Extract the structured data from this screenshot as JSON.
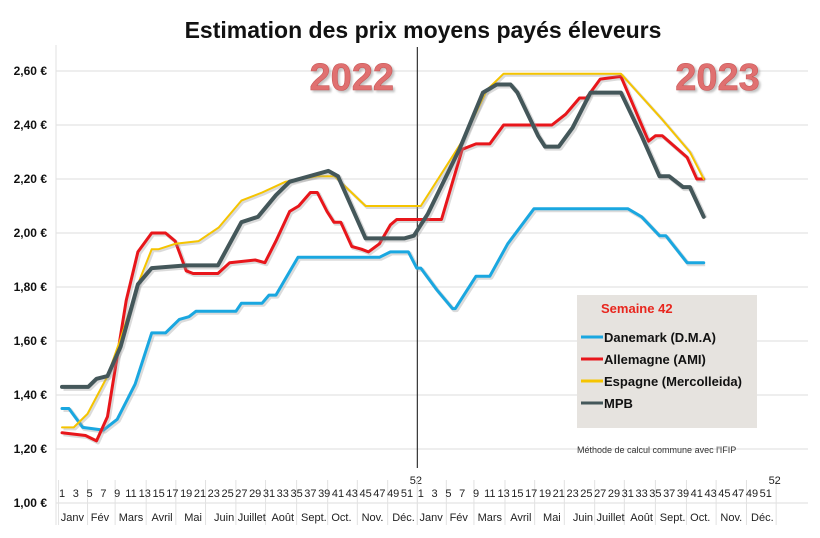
{
  "chart_data": {
    "type": "line",
    "title": "Estimation des prix moyens payés éleveurs",
    "xlabel": "",
    "ylabel": "",
    "ylim": [
      1.0,
      2.6
    ],
    "yticks": [
      "1,00 €",
      "1,20 €",
      "1,40 €",
      "1,60 €",
      "1,80 €",
      "2,00 €",
      "2,20 €",
      "2,40 €",
      "2,60 €"
    ],
    "ytick_values": [
      1.0,
      1.2,
      1.4,
      1.6,
      1.8,
      2.0,
      2.2,
      2.4,
      2.6
    ],
    "grid": true,
    "x_unit": "week index (1-52 = 2022, 53-104 = 2023)",
    "xlim": [
      1,
      104
    ],
    "year_labels": [
      {
        "text": "2022",
        "week_index": 43
      },
      {
        "text": "2023",
        "week_index": 96
      }
    ],
    "year_divider_week_index": 52.5,
    "week_ticks": [
      "1",
      "3",
      "5",
      "7",
      "9",
      "11",
      "13",
      "15",
      "17",
      "19",
      "21",
      "23",
      "25",
      "27",
      "29",
      "31",
      "33",
      "35",
      "37",
      "39",
      "41",
      "43",
      "45",
      "47",
      "49",
      "51",
      "52"
    ],
    "week_tick_values": [
      1,
      3,
      5,
      7,
      9,
      11,
      13,
      15,
      17,
      19,
      21,
      23,
      25,
      27,
      29,
      31,
      33,
      35,
      37,
      39,
      41,
      43,
      45,
      47,
      49,
      51,
      52
    ],
    "months": [
      "Janv",
      "Fév",
      "Mars",
      "Avril",
      "Mai",
      "Juin",
      "Juillet",
      "Août",
      "Sept.",
      "Oct.",
      "Nov.",
      "Déc."
    ],
    "month_centers": [
      2.5,
      6.5,
      11,
      15.5,
      20,
      24.5,
      28.5,
      33,
      37.5,
      41.5,
      46,
      50.5
    ],
    "legend": {
      "title": "Semaine 42",
      "placement": "lower-right"
    },
    "note": "Méthode de calcul commune avec l'IFIP",
    "series": [
      {
        "name": "Danemark (D.M.A)",
        "color": "#1aa7e0",
        "width": 3,
        "points": [
          [
            1,
            1.35
          ],
          [
            2,
            1.35
          ],
          [
            4,
            1.28
          ],
          [
            7,
            1.27
          ],
          [
            9,
            1.31
          ],
          [
            11.6,
            1.44
          ],
          [
            14,
            1.63
          ],
          [
            16,
            1.63
          ],
          [
            18,
            1.68
          ],
          [
            19.4,
            1.69
          ],
          [
            20.4,
            1.71
          ],
          [
            26.2,
            1.71
          ],
          [
            27,
            1.74
          ],
          [
            30,
            1.74
          ],
          [
            31,
            1.77
          ],
          [
            32,
            1.77
          ],
          [
            35.2,
            1.91
          ],
          [
            47,
            1.91
          ],
          [
            48.6,
            1.93
          ],
          [
            51.2,
            1.93
          ],
          [
            52.4,
            1.87
          ],
          [
            53,
            1.87
          ],
          [
            55.3,
            1.79
          ],
          [
            57.6,
            1.72
          ],
          [
            58,
            1.72
          ],
          [
            61,
            1.84
          ],
          [
            63,
            1.84
          ],
          [
            65.6,
            1.96
          ],
          [
            69.4,
            2.09
          ],
          [
            83,
            2.09
          ],
          [
            85,
            2.06
          ],
          [
            87.6,
            1.99
          ],
          [
            88.5,
            1.99
          ],
          [
            91.6,
            1.89
          ],
          [
            94,
            1.89
          ]
        ]
      },
      {
        "name": "Allemagne (AMI)",
        "color": "#e8161b",
        "width": 3,
        "points": [
          [
            1,
            1.26
          ],
          [
            4.4,
            1.25
          ],
          [
            6,
            1.23
          ],
          [
            7.6,
            1.32
          ],
          [
            10.3,
            1.75
          ],
          [
            12,
            1.93
          ],
          [
            14,
            2.0
          ],
          [
            16,
            2.0
          ],
          [
            17.4,
            1.97
          ],
          [
            19,
            1.86
          ],
          [
            20,
            1.85
          ],
          [
            23.6,
            1.85
          ],
          [
            25.3,
            1.89
          ],
          [
            29,
            1.9
          ],
          [
            30.4,
            1.89
          ],
          [
            32,
            1.97
          ],
          [
            34,
            2.08
          ],
          [
            35.3,
            2.1
          ],
          [
            37,
            2.15
          ],
          [
            38,
            2.15
          ],
          [
            39.4,
            2.08
          ],
          [
            40.4,
            2.04
          ],
          [
            41.4,
            2.04
          ],
          [
            43,
            1.95
          ],
          [
            44.4,
            1.94
          ],
          [
            45.4,
            1.93
          ],
          [
            47,
            1.96
          ],
          [
            48.6,
            2.03
          ],
          [
            49.5,
            2.05
          ],
          [
            56,
            2.05
          ],
          [
            59,
            2.31
          ],
          [
            61,
            2.33
          ],
          [
            63,
            2.33
          ],
          [
            65,
            2.4
          ],
          [
            72,
            2.4
          ],
          [
            74,
            2.44
          ],
          [
            76,
            2.5
          ],
          [
            77,
            2.5
          ],
          [
            79,
            2.57
          ],
          [
            82,
            2.58
          ],
          [
            86,
            2.34
          ],
          [
            87,
            2.36
          ],
          [
            88,
            2.36
          ],
          [
            91.6,
            2.28
          ],
          [
            93,
            2.2
          ],
          [
            94,
            2.2
          ]
        ]
      },
      {
        "name": "Espagne (Mercolleida)",
        "color": "#f5c400",
        "width": 2,
        "points": [
          [
            1,
            1.28
          ],
          [
            2.7,
            1.28
          ],
          [
            4.7,
            1.33
          ],
          [
            7.6,
            1.47
          ],
          [
            9.5,
            1.61
          ],
          [
            12.3,
            1.83
          ],
          [
            14,
            1.94
          ],
          [
            15,
            1.94
          ],
          [
            17.4,
            1.96
          ],
          [
            20.8,
            1.97
          ],
          [
            23.7,
            2.02
          ],
          [
            27,
            2.12
          ],
          [
            30,
            2.15
          ],
          [
            33.4,
            2.19
          ],
          [
            38,
            2.21
          ],
          [
            40.5,
            2.21
          ],
          [
            45,
            2.1
          ],
          [
            48,
            2.1
          ],
          [
            53,
            2.1
          ],
          [
            59,
            2.34
          ],
          [
            62.6,
            2.53
          ],
          [
            65,
            2.59
          ],
          [
            82,
            2.59
          ],
          [
            88,
            2.42
          ],
          [
            92,
            2.3
          ],
          [
            94,
            2.2
          ]
        ]
      },
      {
        "name": "MPB",
        "color": "#44575a",
        "width": 4,
        "points": [
          [
            1,
            1.43
          ],
          [
            4.8,
            1.43
          ],
          [
            6,
            1.46
          ],
          [
            7.6,
            1.47
          ],
          [
            9.5,
            1.58
          ],
          [
            12,
            1.81
          ],
          [
            14,
            1.87
          ],
          [
            19,
            1.88
          ],
          [
            23.6,
            1.88
          ],
          [
            27,
            2.04
          ],
          [
            29.4,
            2.06
          ],
          [
            32,
            2.14
          ],
          [
            34,
            2.19
          ],
          [
            39.6,
            2.23
          ],
          [
            41,
            2.21
          ],
          [
            45,
            1.98
          ],
          [
            50.6,
            1.98
          ],
          [
            52,
            1.99
          ],
          [
            54,
            2.07
          ],
          [
            58.6,
            2.31
          ],
          [
            62,
            2.52
          ],
          [
            64,
            2.55
          ],
          [
            66,
            2.55
          ],
          [
            67,
            2.52
          ],
          [
            70,
            2.36
          ],
          [
            71,
            2.32
          ],
          [
            73,
            2.32
          ],
          [
            75,
            2.39
          ],
          [
            77.6,
            2.52
          ],
          [
            82,
            2.52
          ],
          [
            85,
            2.36
          ],
          [
            87.6,
            2.21
          ],
          [
            89,
            2.21
          ],
          [
            91,
            2.17
          ],
          [
            92,
            2.17
          ],
          [
            94,
            2.06
          ]
        ]
      }
    ]
  }
}
